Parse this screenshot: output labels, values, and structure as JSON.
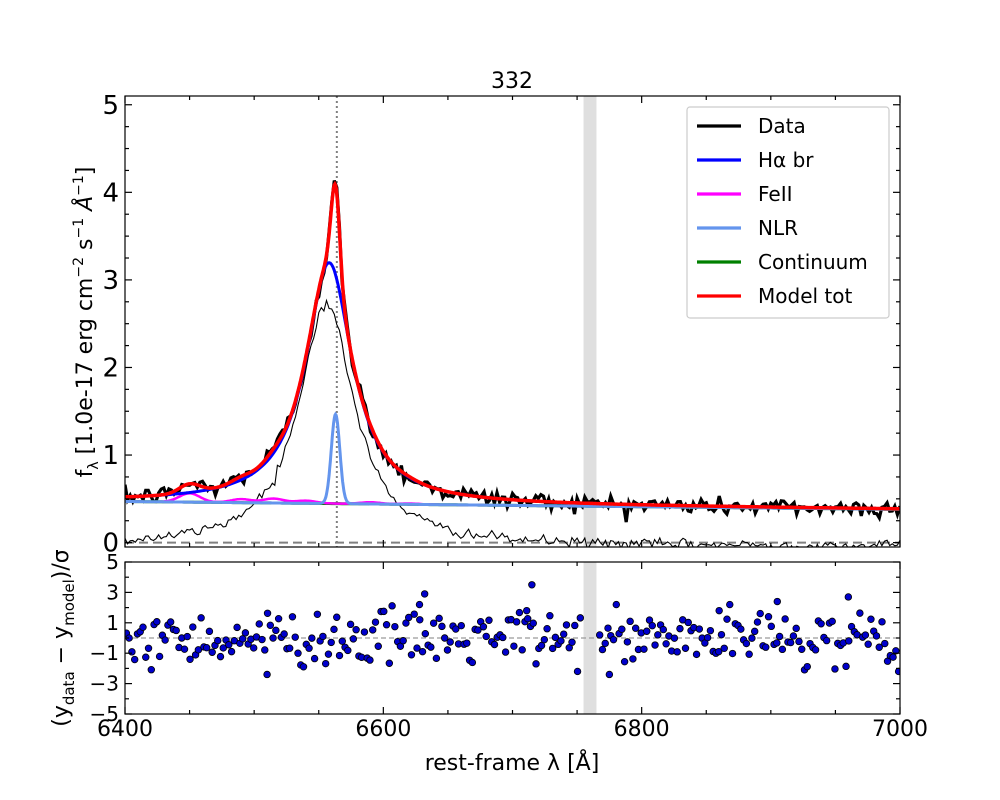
{
  "chart_data": [
    {
      "type": "line",
      "panel": "spectrum",
      "title": "332",
      "xlabel": "rest-frame λ [Å]",
      "ylabel_parts": {
        "f": "f",
        "lambda": "λ",
        "text": " [1.0e-17 erg cm",
        "exp2": "−2",
        "s": " s",
        "exp1a": "−1",
        "ang": " Å",
        "exp1b": "−1",
        "close": "]"
      },
      "xlim": [
        6400,
        7000
      ],
      "ylim": [
        -0.05,
        5.1
      ],
      "xticks": [
        6400,
        6600,
        6800,
        7000
      ],
      "yticks": [
        0,
        1,
        2,
        3,
        4,
        5
      ],
      "vline_x": 6564,
      "masked_region": [
        6755,
        6765
      ],
      "zero_line": 0,
      "legend_position": "top-right",
      "legend": [
        {
          "label": "Data",
          "color": "#000000"
        },
        {
          "label": "Hα br",
          "color": "#0000ff"
        },
        {
          "label": "FeII",
          "color": "#ff00ff"
        },
        {
          "label": "NLR",
          "color": "#6495ed"
        },
        {
          "label": "Continuum",
          "color": "#008000"
        },
        {
          "label": "Model tot",
          "color": "#ff0000"
        }
      ],
      "series": [
        {
          "name": "Hα br",
          "model": "lorentzian",
          "center": 6558,
          "amplitude": 2.75,
          "hwhm": 22
        },
        {
          "name": "NLR",
          "model": "gaussian",
          "center": 6563,
          "amplitude": 1.02,
          "sigma": 3.3
        },
        {
          "name": "Continuum",
          "model": "linear",
          "x": [
            6400,
            7000
          ],
          "y": [
            0.47,
            0.38
          ]
        },
        {
          "name": "FeII",
          "model": "bumps",
          "centers": [
            6450,
            6490,
            6515,
            6540,
            6590,
            6620
          ],
          "amplitudes": [
            0.1,
            0.04,
            0.05,
            0.03,
            0.02,
            0.01
          ],
          "sigma": 8
        },
        {
          "name": "Model tot",
          "components": [
            "Continuum",
            "Hα br",
            "NLR",
            "FeII"
          ]
        },
        {
          "name": "Data",
          "follows": "Model tot",
          "noise_amplitude": 0.05,
          "n_points": 300
        },
        {
          "name": "Broad residual (thin)",
          "model": "lorentzian",
          "center": 6556,
          "amplitude": 2.78,
          "hwhm": 26
        }
      ]
    },
    {
      "type": "scatter",
      "panel": "residuals",
      "ylabel": "(y_data − y_model)/σ",
      "ylabel_parts": {
        "open": "(y",
        "sub1": "data",
        "minus": " − y",
        "sub2": "model",
        "close": ")/σ"
      },
      "xlim": [
        6400,
        7000
      ],
      "ylim": [
        -5,
        5
      ],
      "xticks": [
        6400,
        6600,
        6800,
        7000
      ],
      "yticks": [
        5,
        3,
        1,
        -1,
        -3,
        -5
      ],
      "zero_line": 0,
      "point_color": "#0000cc",
      "n_points": 280,
      "noise_sigma": 0.9,
      "outliers": [
        {
          "x": 6510,
          "y": -2.4
        },
        {
          "x": 6632,
          "y": 2.9
        },
        {
          "x": 6628,
          "y": 2.2
        },
        {
          "x": 6715,
          "y": 3.5
        },
        {
          "x": 6711,
          "y": 1.8
        },
        {
          "x": 6775,
          "y": -2.4
        },
        {
          "x": 6905,
          "y": 2.4
        },
        {
          "x": 6960,
          "y": 2.7
        },
        {
          "x": 6860,
          "y": 1.8
        }
      ]
    }
  ]
}
